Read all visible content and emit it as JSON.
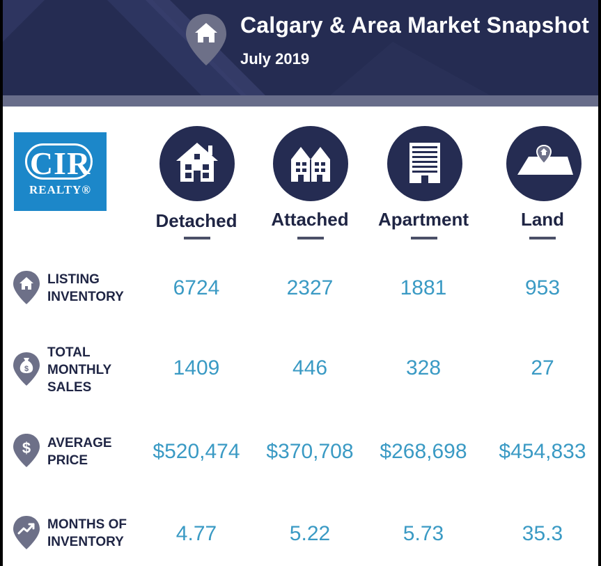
{
  "header": {
    "title": "Calgary & Area Market Snapshot",
    "subtitle": "July 2019",
    "icon": "house-pin-icon"
  },
  "logo": {
    "mark": "CIR",
    "wordmark": "REALTY®"
  },
  "categories": [
    {
      "label": "Detached",
      "icon": "detached-house-icon"
    },
    {
      "label": "Attached",
      "icon": "townhouse-icon"
    },
    {
      "label": "Apartment",
      "icon": "apartment-building-icon"
    },
    {
      "label": "Land",
      "icon": "land-plot-icon"
    }
  ],
  "rows": [
    {
      "label_lines": [
        "LISTING",
        "INVENTORY"
      ],
      "icon": "house-pin-icon",
      "values": [
        "6724",
        "2327",
        "1881",
        "953"
      ]
    },
    {
      "label_lines": [
        "TOTAL",
        "MONTHLY",
        "SALES"
      ],
      "icon": "money-bag-pin-icon",
      "values": [
        "1409",
        "446",
        "328",
        "27"
      ]
    },
    {
      "label_lines": [
        "AVERAGE",
        "PRICE"
      ],
      "icon": "dollar-pin-icon",
      "values": [
        "$520,474",
        "$370,708",
        "$268,698",
        "$454,833"
      ]
    },
    {
      "label_lines": [
        "MONTHS OF",
        "INVENTORY"
      ],
      "icon": "trend-pin-icon",
      "values": [
        "4.77",
        "5.22",
        "5.73",
        "35.3"
      ]
    }
  ],
  "colors": {
    "navy": "#252c52",
    "value_blue": "#3a9ac4",
    "logo_blue": "#1c87c9",
    "pin_gray": "#6d7088"
  }
}
